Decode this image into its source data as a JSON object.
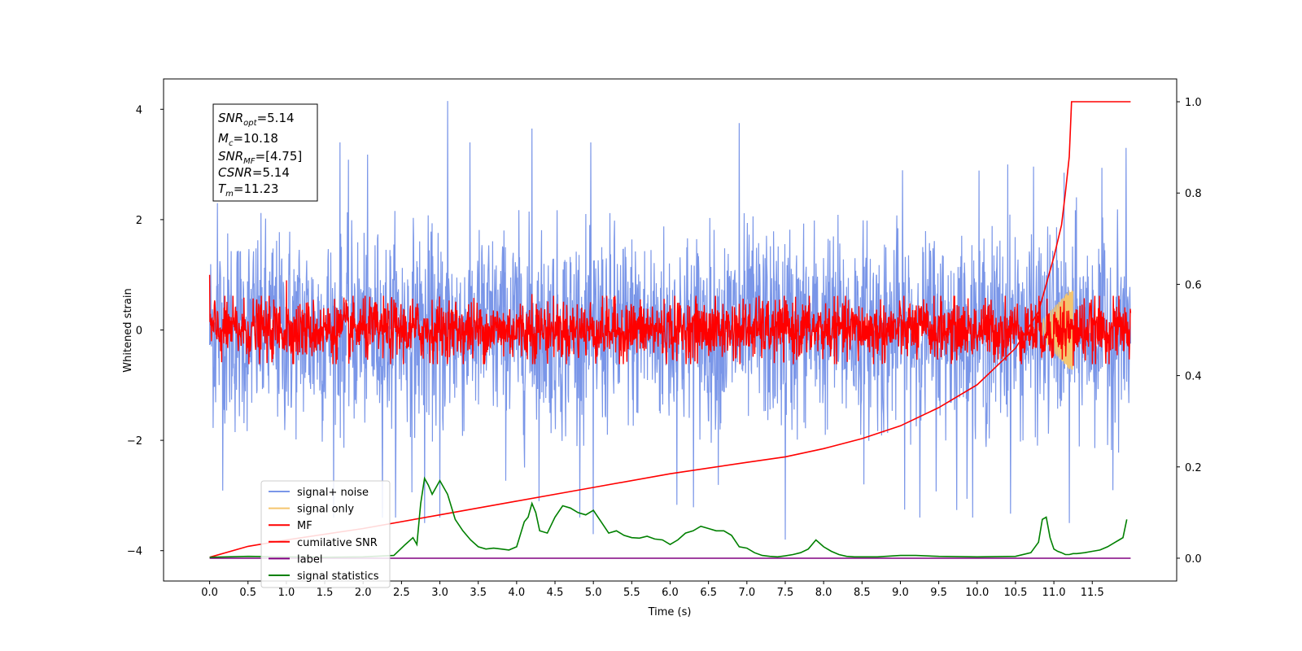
{
  "chart_data": {
    "type": "line",
    "title": "",
    "xlabel": "Time (s)",
    "ylabel": "Whitened strain",
    "xlim": [
      -0.6,
      12.6
    ],
    "ylim": [
      -4.55,
      4.55
    ],
    "y2lim": [
      -0.05,
      1.05
    ],
    "x_ticks": [
      0.0,
      0.5,
      1.0,
      1.5,
      2.0,
      2.5,
      3.0,
      3.5,
      4.0,
      4.5,
      5.0,
      5.5,
      6.0,
      6.5,
      7.0,
      7.5,
      8.0,
      8.5,
      9.0,
      9.5,
      10.0,
      10.5,
      11.0,
      11.5
    ],
    "x_tick_labels": [
      "0.0",
      "0.5",
      "1.0",
      "1.5",
      "2.0",
      "2.5",
      "3.0",
      "3.5",
      "4.0",
      "4.5",
      "5.0",
      "5.5",
      "6.0",
      "6.5",
      "7.0",
      "7.5",
      "8.0",
      "8.5",
      "9.0",
      "9.5",
      "10.0",
      "10.5",
      "11.0",
      "11.5"
    ],
    "y_ticks": [
      -4,
      -2,
      0,
      2,
      4
    ],
    "y_tick_labels": [
      "−4",
      "−2",
      "0",
      "2",
      "4"
    ],
    "y2_ticks": [
      0.0,
      0.2,
      0.4,
      0.6,
      0.8,
      1.0
    ],
    "y2_tick_labels": [
      "0.0",
      "0.2",
      "0.4",
      "0.6",
      "0.8",
      "1.0"
    ],
    "grid": false,
    "legend_position": "lower-left",
    "series": [
      {
        "name": "signal+ noise",
        "color": "#7a96e8",
        "axis": "left",
        "amplitude_scale": 1.0,
        "peaks": [
          [
            0.1,
            2.3
          ],
          [
            1.7,
            3.4
          ],
          [
            2.8,
            -3.5
          ],
          [
            3.1,
            4.15
          ],
          [
            4.2,
            3.65
          ],
          [
            5.0,
            -3.7
          ],
          [
            7.5,
            -3.8
          ],
          [
            6.9,
            3.75
          ],
          [
            10.4,
            3.0
          ],
          [
            11.2,
            3.1
          ],
          [
            3.0,
            -3.4
          ],
          [
            11.2,
            -3.5
          ]
        ]
      },
      {
        "name": "signal only",
        "color": "#f5c56e",
        "axis": "left",
        "start": 10.8,
        "end": 11.25
      },
      {
        "name": "MF",
        "color": "#ff0000",
        "axis": "left",
        "amplitude_scale": 0.3,
        "peaks": [
          [
            0.0,
            1.0
          ],
          [
            1.0,
            0.9
          ],
          [
            4.2,
            0.65
          ],
          [
            11.25,
            0.8
          ],
          [
            11.25,
            -0.65
          ]
        ]
      },
      {
        "name": "cumilative SNR",
        "color": "#ff0000",
        "axis": "right",
        "x": [
          0.0,
          0.5,
          1.0,
          2.0,
          3.0,
          4.0,
          5.0,
          6.0,
          7.0,
          7.5,
          8.0,
          8.5,
          9.0,
          9.5,
          10.0,
          10.5,
          10.8,
          11.0,
          11.1,
          11.15,
          11.2,
          11.23,
          12.0
        ],
        "y": [
          0.002,
          0.026,
          0.04,
          0.065,
          0.095,
          0.125,
          0.155,
          0.185,
          0.21,
          0.222,
          0.24,
          0.262,
          0.29,
          0.33,
          0.38,
          0.46,
          0.54,
          0.66,
          0.73,
          0.8,
          0.88,
          1.0,
          1.0
        ]
      },
      {
        "name": "label",
        "color": "#800080",
        "axis": "right",
        "x": [
          0.0,
          12.0
        ],
        "y": [
          0.0,
          0.0
        ]
      },
      {
        "name": "signal statistics",
        "color": "#008000",
        "axis": "right",
        "x": [
          0.0,
          0.5,
          1.0,
          1.5,
          2.0,
          2.4,
          2.55,
          2.65,
          2.7,
          2.75,
          2.8,
          2.85,
          2.9,
          3.0,
          3.1,
          3.2,
          3.3,
          3.4,
          3.5,
          3.6,
          3.7,
          3.8,
          3.9,
          4.0,
          4.1,
          4.15,
          4.2,
          4.25,
          4.3,
          4.4,
          4.5,
          4.6,
          4.7,
          4.8,
          4.9,
          5.0,
          5.1,
          5.2,
          5.3,
          5.4,
          5.5,
          5.6,
          5.7,
          5.8,
          5.9,
          6.0,
          6.1,
          6.2,
          6.3,
          6.4,
          6.5,
          6.6,
          6.7,
          6.8,
          6.9,
          7.0,
          7.1,
          7.2,
          7.3,
          7.4,
          7.5,
          7.6,
          7.7,
          7.8,
          7.9,
          8.0,
          8.1,
          8.2,
          8.3,
          8.4,
          8.5,
          8.7,
          9.0,
          9.2,
          9.5,
          10.0,
          10.5,
          10.7,
          10.8,
          10.85,
          10.9,
          10.95,
          11.0,
          11.05,
          11.1,
          11.15,
          11.2,
          11.25,
          11.3,
          11.4,
          11.5,
          11.6,
          11.7,
          11.8,
          11.85,
          11.9,
          11.95
        ],
        "y": [
          0.002,
          0.004,
          0.003,
          0.002,
          0.003,
          0.006,
          0.03,
          0.045,
          0.03,
          0.12,
          0.175,
          0.16,
          0.14,
          0.17,
          0.14,
          0.085,
          0.06,
          0.04,
          0.025,
          0.02,
          0.022,
          0.02,
          0.018,
          0.025,
          0.08,
          0.09,
          0.12,
          0.1,
          0.06,
          0.055,
          0.09,
          0.115,
          0.11,
          0.1,
          0.095,
          0.105,
          0.08,
          0.055,
          0.06,
          0.05,
          0.045,
          0.044,
          0.048,
          0.042,
          0.04,
          0.03,
          0.04,
          0.055,
          0.06,
          0.07,
          0.065,
          0.06,
          0.06,
          0.05,
          0.025,
          0.022,
          0.012,
          0.006,
          0.004,
          0.003,
          0.005,
          0.008,
          0.012,
          0.02,
          0.04,
          0.025,
          0.015,
          0.008,
          0.004,
          0.003,
          0.003,
          0.003,
          0.006,
          0.006,
          0.004,
          0.003,
          0.004,
          0.012,
          0.035,
          0.085,
          0.09,
          0.045,
          0.02,
          0.015,
          0.012,
          0.008,
          0.008,
          0.01,
          0.01,
          0.012,
          0.015,
          0.018,
          0.025,
          0.035,
          0.04,
          0.045,
          0.085
        ]
      }
    ]
  },
  "info_box": {
    "snr_opt_value": "=5.14",
    "mc_value": "=10.18",
    "snr_mf_value": "=[4.75]",
    "csnr_value": "=5.14",
    "tm_value": "=11.23"
  }
}
